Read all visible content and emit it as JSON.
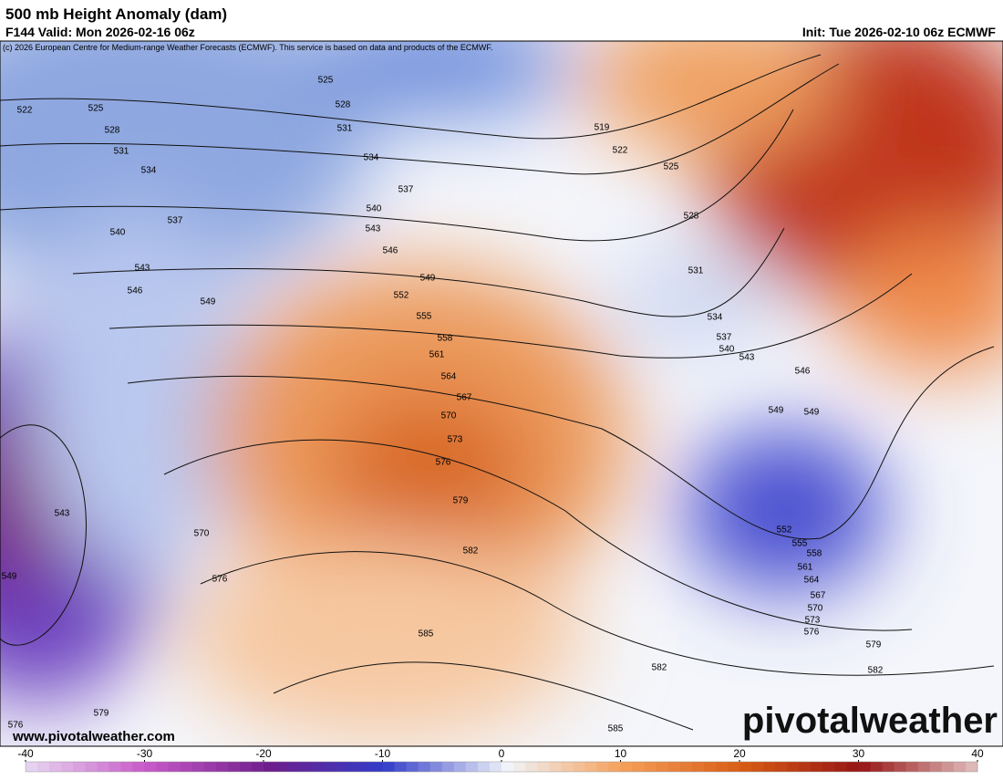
{
  "header": {
    "title": "500 mb Height Anomaly (dam)",
    "valid": "F144 Valid: Mon 2026-02-16 06z",
    "init": "Init: Tue 2026-02-10 06z ECMWF",
    "credit": "(c) 2026 European Centre for Medium-range Weather Forecasts (ECMWF). This service is based on data and products of the ECMWF."
  },
  "contour_labels": [
    522,
    525,
    528,
    531,
    534,
    537,
    540,
    543,
    546,
    549,
    525,
    528,
    531,
    534,
    537,
    540,
    543,
    546,
    549,
    552,
    555,
    558,
    561,
    564,
    567,
    570,
    573,
    576,
    579,
    582,
    585,
    519,
    522,
    525,
    528,
    531,
    534,
    537,
    540,
    543,
    546,
    549,
    549,
    552,
    555,
    558,
    561,
    564,
    567,
    570,
    573,
    576,
    579,
    582,
    582,
    585,
    543,
    549,
    570,
    576,
    579,
    576
  ],
  "watermark": {
    "url": "www.pivotalweather.com",
    "brand": "pivotalweather"
  },
  "colorbar": {
    "range": [
      -40,
      40
    ],
    "ticks": [
      -40,
      -30,
      -20,
      -10,
      0,
      10,
      20,
      30,
      40
    ]
  }
}
